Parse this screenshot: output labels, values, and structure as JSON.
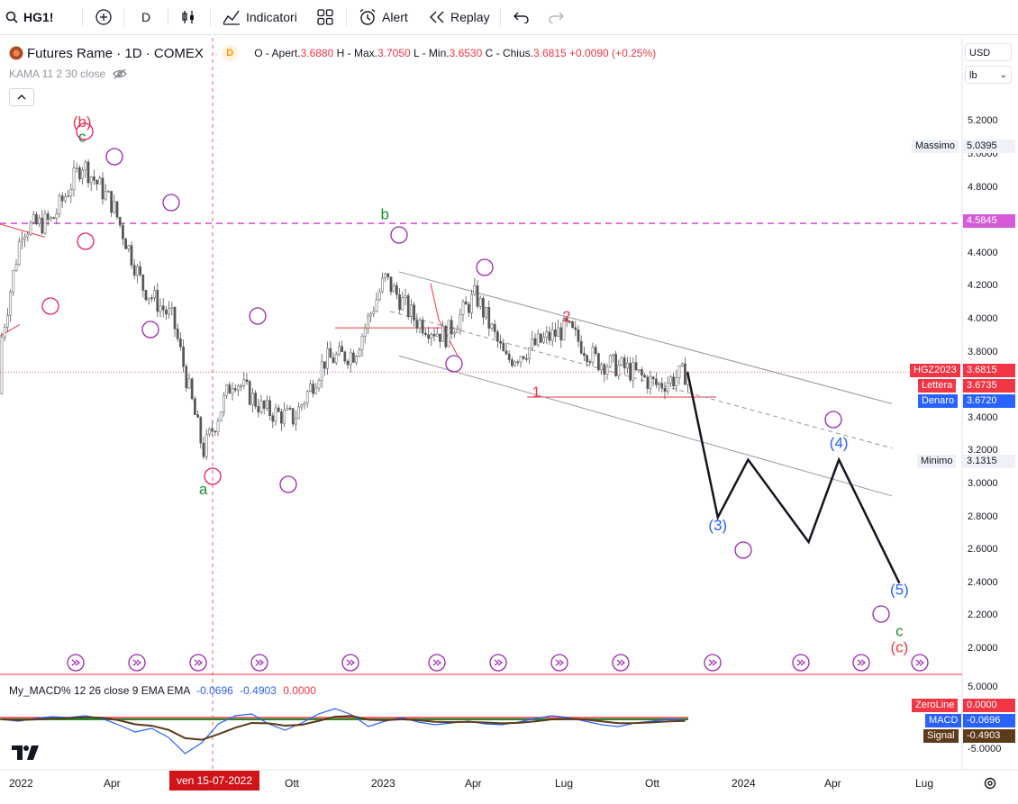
{
  "toolbar": {
    "symbol": "HG1!",
    "interval": "D",
    "indicators_label": "Indicatori",
    "alert_label": "Alert",
    "replay_label": "Replay"
  },
  "legend": {
    "title": "Futures Rame · 1D · COMEX",
    "badge": "D",
    "o_label": "O - Apert.",
    "o_value": "3.6880",
    "h_label": "H - Max.",
    "h_value": "3.7050",
    "l_label": "L - Min.",
    "l_value": "3.6530",
    "c_label": "C - Chius.",
    "c_value": "3.6815",
    "change": "+0.0090 (+0.25%)",
    "kama_label": "KAMA 11 2 30 close"
  },
  "scale": {
    "currency": "USD",
    "unit": "lb",
    "ticks": [
      "5.2000",
      "5.0000",
      "4.8000",
      "4.6000",
      "4.4000",
      "4.2000",
      "4.0000",
      "3.8000",
      "3.6000",
      "3.4000",
      "3.2000",
      "3.0000",
      "2.8000",
      "2.6000",
      "2.4000",
      "2.2000",
      "2.0000"
    ],
    "macd_ticks": [
      "5.0000",
      "-5.0000"
    ]
  },
  "price_tags": {
    "massimo_label": "Massimo",
    "massimo_value": "5.0395",
    "level": "4.5845",
    "contract_label": "HGZ2023",
    "contract_value": "3.6815",
    "lettera_label": "Lettera",
    "lettera_value": "3.6735",
    "denaro_label": "Denaro",
    "denaro_value": "3.6720",
    "minimo_label": "Minimo",
    "minimo_value": "3.1315"
  },
  "macd": {
    "label": "My_MACD% 12 26 close 9 EMA EMA",
    "v1": "-0.0696",
    "v2": "-0.4903",
    "v3": "0.0000",
    "zeroline_label": "ZeroLine",
    "zeroline_value": "0.0000",
    "macd_label": "MACD",
    "macd_value": "-0.0696",
    "signal_label": "Signal",
    "signal_value": "-0.4903"
  },
  "time_axis": {
    "labels": [
      "2022",
      "Apr",
      "Ott",
      "2023",
      "Apr",
      "Lug",
      "Ott",
      "2024",
      "Apr",
      "Lug"
    ],
    "crosshair_date": "ven 15-07-2022"
  },
  "colors": {
    "up": "#26a69a",
    "down": "#ef5350",
    "candle": "#555555",
    "wave_blue": "#2962ff",
    "wave_purple": "#9c27b0",
    "wave_pink": "#e91e63",
    "wave_red": "#f23645",
    "wave_green": "#1b8e2d"
  },
  "chart_data": {
    "type": "candlestick",
    "title": "Futures Rame · 1D · COMEX",
    "ylim": [
      1.9,
      5.3
    ],
    "x_range": [
      "2021-12",
      "2024-08"
    ],
    "close_path": [
      {
        "x": "2021-12",
        "y": 3.55
      },
      {
        "x": "2022-01",
        "y": 4.55
      },
      {
        "x": "2022-02",
        "y": 4.6
      },
      {
        "x": "2022-03",
        "y": 4.95
      },
      {
        "x": "2022-04",
        "y": 4.7
      },
      {
        "x": "2022-05",
        "y": 4.2
      },
      {
        "x": "2022-06",
        "y": 4.0
      },
      {
        "x": "2022-07",
        "y": 3.2
      },
      {
        "x": "2022-08",
        "y": 3.65
      },
      {
        "x": "2022-09",
        "y": 3.45
      },
      {
        "x": "2022-10",
        "y": 3.4
      },
      {
        "x": "2022-11",
        "y": 3.75
      },
      {
        "x": "2022-12",
        "y": 3.8
      },
      {
        "x": "2023-01",
        "y": 4.25
      },
      {
        "x": "2023-02",
        "y": 4.0
      },
      {
        "x": "2023-03",
        "y": 3.9
      },
      {
        "x": "2023-04",
        "y": 4.15
      },
      {
        "x": "2023-05",
        "y": 3.75
      },
      {
        "x": "2023-06",
        "y": 3.85
      },
      {
        "x": "2023-07",
        "y": 3.95
      },
      {
        "x": "2023-08",
        "y": 3.75
      },
      {
        "x": "2023-09",
        "y": 3.7
      },
      {
        "x": "2023-10",
        "y": 3.6
      },
      {
        "x": "2023-11",
        "y": 3.68
      }
    ],
    "projection": [
      {
        "x": "2023-11",
        "y": 3.68
      },
      {
        "x": "2023-12",
        "y": 2.8
      },
      {
        "x": "2024-01",
        "y": 3.15
      },
      {
        "x": "2024-03",
        "y": 2.65
      },
      {
        "x": "2024-04",
        "y": 3.15
      },
      {
        "x": "2024-06",
        "y": 2.4
      }
    ],
    "wave_labels": [
      {
        "x": "2022-03",
        "y": 5.17,
        "text": "(b)",
        "color": "wave_red"
      },
      {
        "x": "2022-03",
        "y": 5.08,
        "text": "c",
        "color": "wave_green"
      },
      {
        "x": "2023-01",
        "y": 4.61,
        "text": "b",
        "color": "wave_green"
      },
      {
        "x": "2023-07",
        "y": 3.99,
        "text": "2",
        "color": "wave_red"
      },
      {
        "x": "2023-06",
        "y": 3.53,
        "text": "1",
        "color": "wave_red"
      },
      {
        "x": "2022-07",
        "y": 2.94,
        "text": "a",
        "color": "wave_green"
      },
      {
        "x": "2023-12",
        "y": 2.72,
        "text": "(3)",
        "color": "wave_blue"
      },
      {
        "x": "2024-04",
        "y": 3.22,
        "text": "(4)",
        "color": "wave_blue"
      },
      {
        "x": "2024-06",
        "y": 2.33,
        "text": "(5)",
        "color": "wave_blue"
      },
      {
        "x": "2024-06",
        "y": 2.08,
        "text": "c",
        "color": "wave_green"
      },
      {
        "x": "2024-06",
        "y": 1.98,
        "text": "(c)",
        "color": "wave_red"
      }
    ],
    "macd": {
      "macd": -0.0696,
      "signal": -0.4903,
      "zeroline": 0.0
    }
  }
}
